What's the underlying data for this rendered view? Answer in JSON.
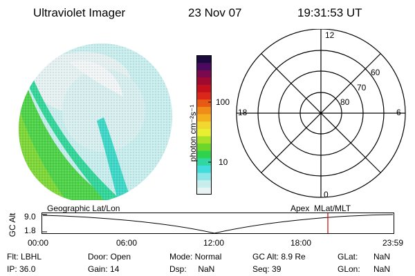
{
  "header": {
    "title": "Ultraviolet Imager",
    "date": "23 Nov 07",
    "time": "19:31:53 UT"
  },
  "colorbar": {
    "unit_label": "photon cm⁻²s⁻¹",
    "tick_100": "100",
    "tick_10": "10",
    "colors": [
      "#e8f4f4",
      "#c7eded",
      "#8de6e6",
      "#41dcdc",
      "#31d6a0",
      "#2ed24d",
      "#6dd62a",
      "#a8e02a",
      "#e8ee30",
      "#f0d830",
      "#f5b020",
      "#f08c18",
      "#e85a14",
      "#d9281a",
      "#c4101c",
      "#a00a30",
      "#7a0a50",
      "#4a0a60",
      "#1a0a40"
    ]
  },
  "polar_plot": {
    "label_top": "12",
    "label_bottom": "0",
    "label_left": "18",
    "label_right": "6",
    "lat_60": "60",
    "lat_70": "70",
    "lat_80": "80"
  },
  "timeline": {
    "left_title": "Geographic Lat/Lon",
    "right_title": "Apex  MLat/MLT",
    "ylabel": "GC Alt",
    "y_top": "9.0",
    "y_bottom": "1.8",
    "x_ticks": [
      "00:00",
      "06:00",
      "12:00",
      "18:00",
      "23:59"
    ],
    "marker_color": "#cc0000"
  },
  "footer": {
    "flt": "Flt: LBHL",
    "ip": "IP: 36.0",
    "door": "Door: Open",
    "gain": "Gain: 14",
    "mode": "Mode: Normal",
    "dsp": "Dsp:     NaN",
    "gcalt": "GC Alt: 8.9 Re",
    "seq": "Seq: 39",
    "glat_label": "GLat:",
    "glat_value": "NaN",
    "glon_label": "GLon:",
    "glon_value": "NaN"
  }
}
